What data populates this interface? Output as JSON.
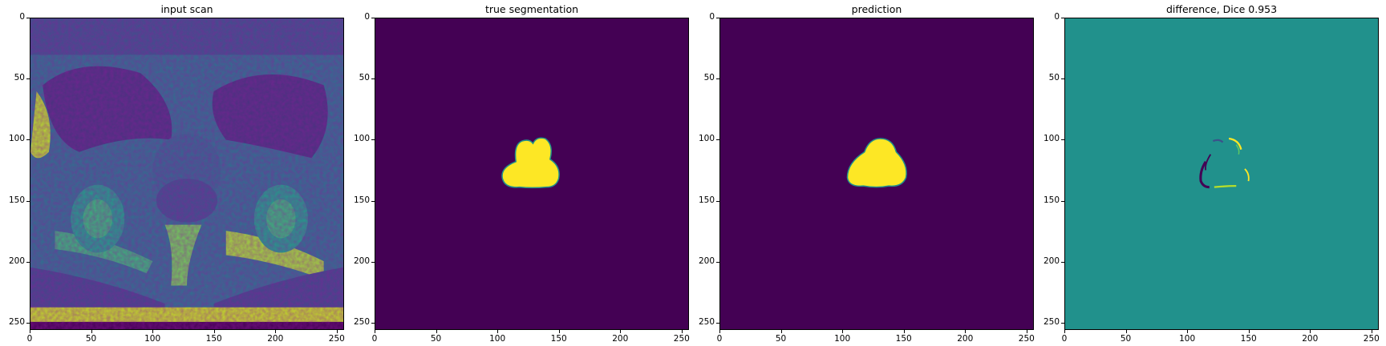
{
  "panels": [
    {
      "title": "input scan",
      "kind": "mri"
    },
    {
      "title": "true segmentation",
      "kind": "mask_true"
    },
    {
      "title": "prediction",
      "kind": "mask_pred"
    },
    {
      "title": "difference, Dice 0.953",
      "kind": "diff"
    }
  ],
  "axes": {
    "xticks": [
      "0",
      "50",
      "100",
      "150",
      "200",
      "250"
    ],
    "yticks": [
      "0",
      "50",
      "100",
      "150",
      "200",
      "250"
    ]
  },
  "colors": {
    "viridis_dark": "#440154",
    "viridis_mid": "#21918c",
    "viridis_bright": "#fde725",
    "viridis_blue": "#3b528b",
    "viridis_green": "#5ec962"
  }
}
